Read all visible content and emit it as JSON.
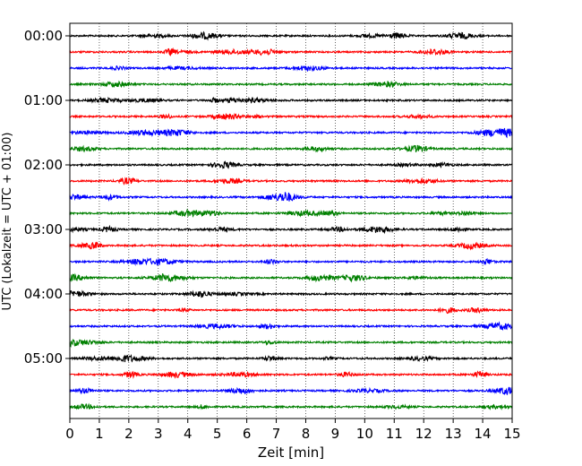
{
  "chart_data": {
    "type": "line",
    "subtype": "helicorder",
    "xlabel": "Zeit  [min]",
    "ylabel": "UTC (Lokalzeit = UTC + 01:00)",
    "xlim": [
      0,
      15
    ],
    "x_ticks": [
      "0",
      "1",
      "2",
      "3",
      "4",
      "5",
      "6",
      "7",
      "8",
      "9",
      "10",
      "11",
      "12",
      "13",
      "14",
      "15"
    ],
    "y_ticks": [
      "00:00",
      "01:00",
      "02:00",
      "03:00",
      "04:00",
      "05:00"
    ],
    "grid": "vertical dotted lines at each minute",
    "trace_colors": [
      "#000000",
      "#ff0000",
      "#0000ff",
      "#008000"
    ],
    "trace_interval_min": 15,
    "trace_count": 24,
    "series": [
      {
        "start": "00:00",
        "color": "#000000"
      },
      {
        "start": "00:15",
        "color": "#ff0000"
      },
      {
        "start": "00:30",
        "color": "#0000ff"
      },
      {
        "start": "00:45",
        "color": "#008000"
      },
      {
        "start": "01:00",
        "color": "#000000"
      },
      {
        "start": "01:15",
        "color": "#ff0000"
      },
      {
        "start": "01:30",
        "color": "#0000ff"
      },
      {
        "start": "01:45",
        "color": "#008000"
      },
      {
        "start": "02:00",
        "color": "#000000"
      },
      {
        "start": "02:15",
        "color": "#ff0000"
      },
      {
        "start": "02:30",
        "color": "#0000ff"
      },
      {
        "start": "02:45",
        "color": "#008000"
      },
      {
        "start": "03:00",
        "color": "#000000"
      },
      {
        "start": "03:15",
        "color": "#ff0000"
      },
      {
        "start": "03:30",
        "color": "#0000ff"
      },
      {
        "start": "03:45",
        "color": "#008000"
      },
      {
        "start": "04:00",
        "color": "#000000"
      },
      {
        "start": "04:15",
        "color": "#ff0000"
      },
      {
        "start": "04:30",
        "color": "#0000ff"
      },
      {
        "start": "04:45",
        "color": "#008000"
      },
      {
        "start": "05:00",
        "color": "#000000"
      },
      {
        "start": "05:15",
        "color": "#ff0000"
      },
      {
        "start": "05:30",
        "color": "#0000ff"
      },
      {
        "start": "05:45",
        "color": "#008000"
      }
    ]
  }
}
